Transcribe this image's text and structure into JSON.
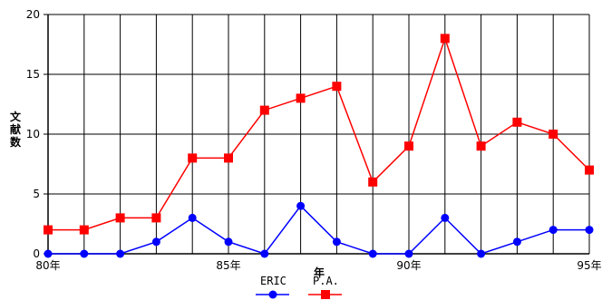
{
  "chart_data": {
    "type": "line",
    "title": "",
    "xlabel": "年",
    "ylabel": "文献数",
    "ylim": [
      0,
      20
    ],
    "yticks": [
      "0",
      "5",
      "10",
      "15",
      "20"
    ],
    "x": [
      80,
      81,
      82,
      83,
      84,
      85,
      86,
      87,
      88,
      89,
      90,
      91,
      92,
      93,
      94,
      95
    ],
    "xticks": [
      {
        "x": 80,
        "label": "80年"
      },
      {
        "x": 85,
        "label": "85年"
      },
      {
        "x": 90,
        "label": "90年"
      },
      {
        "x": 95,
        "label": "95年"
      }
    ],
    "grid": true,
    "legend": "bottom-center",
    "series": [
      {
        "name": "ERIC",
        "color": "#0000ff",
        "marker": "circle",
        "values": [
          0,
          0,
          0,
          1,
          3,
          1,
          0,
          4,
          1,
          0,
          0,
          3,
          0,
          1,
          2,
          2
        ]
      },
      {
        "name": "P.A.",
        "color": "#ff0000",
        "marker": "square",
        "values": [
          2,
          2,
          3,
          3,
          8,
          8,
          12,
          13,
          14,
          6,
          9,
          18,
          9,
          11,
          10,
          7
        ]
      }
    ]
  }
}
